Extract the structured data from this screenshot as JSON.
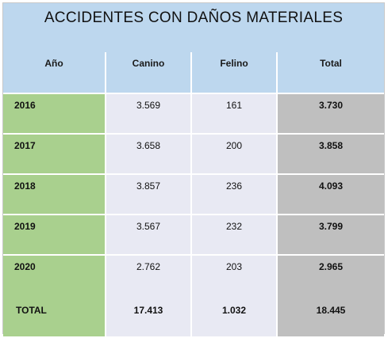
{
  "chart_data": {
    "type": "table",
    "title": "ACCIDENTES CON DAÑOS MATERIALES",
    "columns": [
      "Año",
      "Canino",
      "Felino",
      "Total"
    ],
    "rows": [
      {
        "year": "2016",
        "canino": "3.569",
        "felino": "161",
        "total": "3.730"
      },
      {
        "year": "2017",
        "canino": "3.658",
        "felino": "200",
        "total": "3.858"
      },
      {
        "year": "2018",
        "canino": "3.857",
        "felino": "236",
        "total": "4.093"
      },
      {
        "year": "2019",
        "canino": "3.567",
        "felino": "232",
        "total": "3.799"
      },
      {
        "year": "2020",
        "canino": "2.762",
        "felino": "203",
        "total": "2.965"
      }
    ],
    "summary": {
      "label": "TOTAL",
      "canino": "17.413",
      "felino": "1.032",
      "total": "18.445"
    }
  },
  "colors": {
    "header": "#bdd7ee",
    "year_column": "#a9d08e",
    "body": "#e8e9f3",
    "total_column": "#bfbfbf"
  }
}
